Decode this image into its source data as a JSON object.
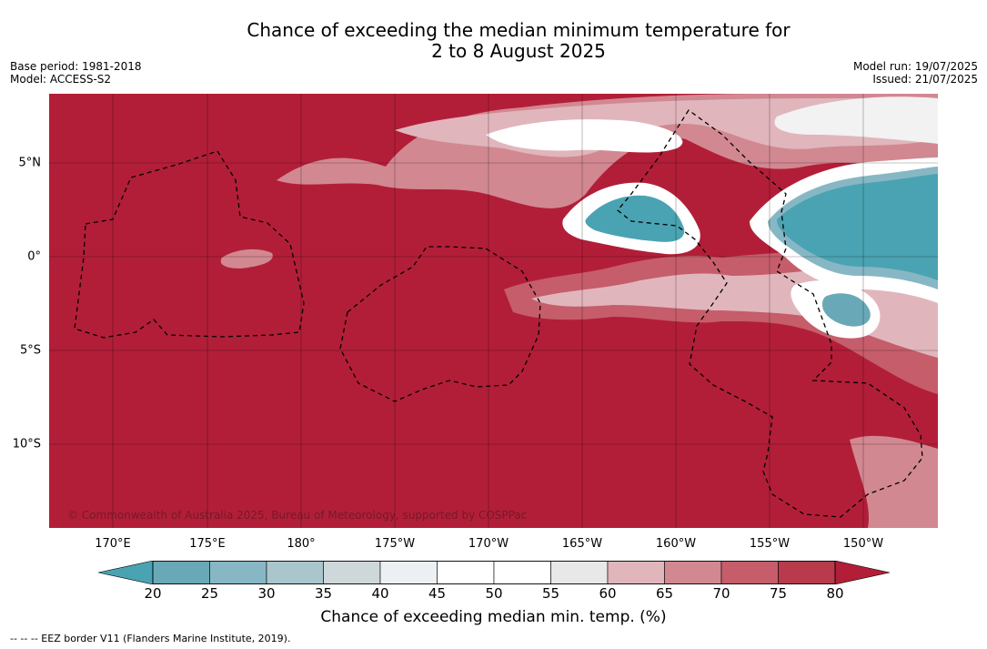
{
  "header": {
    "title_line1": "Chance of exceeding the median minimum temperature for",
    "title_line2": "2 to 8 August 2025",
    "base_period": "Base period: 1981-2018",
    "model": "Model: ACCESS-S2",
    "model_run": "Model run: 19/07/2025",
    "issued": "Issued: 21/07/2025"
  },
  "map": {
    "latitude_labels": [
      "5°N",
      "0°",
      "5°S",
      "10°S"
    ],
    "longitude_labels": [
      "170°E",
      "175°E",
      "180°",
      "175°W",
      "170°W",
      "165°W",
      "160°W",
      "155°W",
      "150°W"
    ],
    "copyright": "© Commonwealth of Australia 2025, Bureau of Meteorology, supported by COSPPac",
    "background_color": "#b21e38"
  },
  "colorbar": {
    "label": "Chance of exceeding median min. temp. (%)",
    "ticks": [
      "20",
      "25",
      "30",
      "35",
      "40",
      "45",
      "50",
      "55",
      "60",
      "65",
      "70",
      "75",
      "80"
    ],
    "colors": [
      "#69a9b7",
      "#87b7c4",
      "#aac6cd",
      "#ced8db",
      "#ecf0f2",
      "#ffffff",
      "#ffffff",
      "#e8e8e8",
      "#e0b6bc",
      "#d28891",
      "#c65d6a",
      "#b83a4c"
    ],
    "under_color": "#4aa3b2",
    "over_color": "#b21e38"
  },
  "footnote": "--  --  -- EEZ border V11 (Flanders Marine Institute, 2019)."
}
